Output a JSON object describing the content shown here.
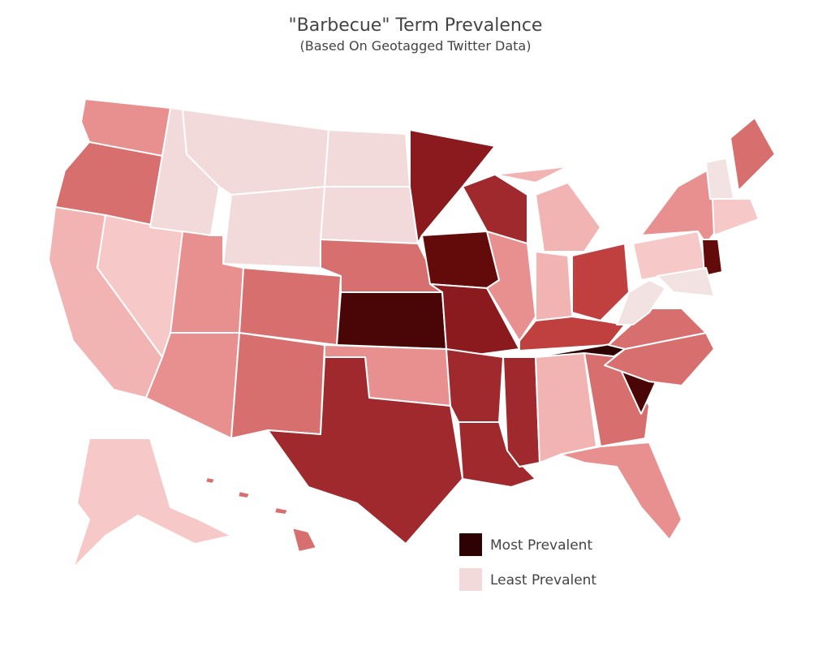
{
  "title": "\"Barbecue\" Term Prevalence",
  "subtitle": "(Based On Geotagged Twitter Data)",
  "legend": [
    {
      "label": "Most Prevalent",
      "color": "#2e0202"
    },
    {
      "label": "Least Prevalent",
      "color": "#f3dada"
    }
  ]
}
